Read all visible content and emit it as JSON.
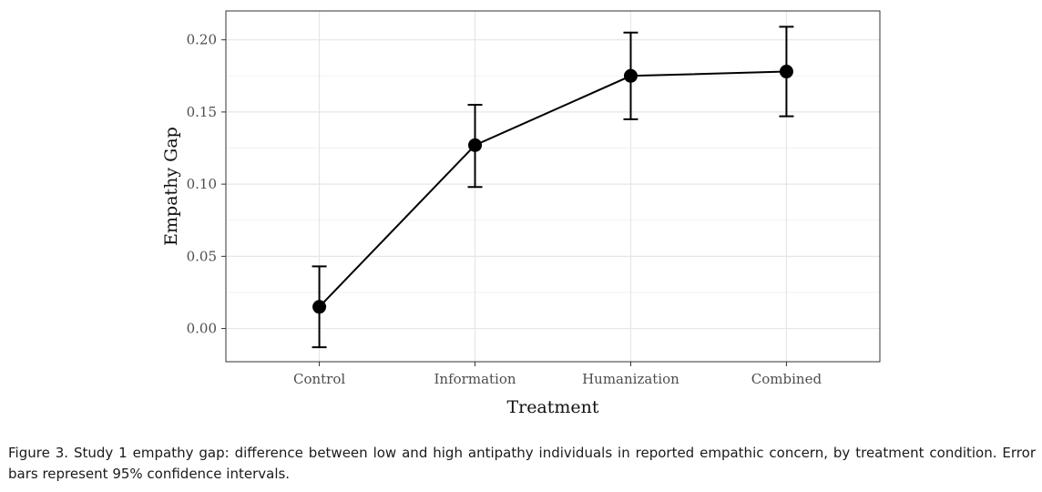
{
  "chart_data": {
    "type": "line",
    "categories": [
      "Control",
      "Information",
      "Humanization",
      "Combined"
    ],
    "series": [
      {
        "values": [
          0.015,
          0.127,
          0.175,
          0.178
        ],
        "ci_lower": [
          -0.013,
          0.098,
          0.145,
          0.147
        ],
        "ci_upper": [
          0.043,
          0.155,
          0.205,
          0.209
        ]
      }
    ],
    "xlabel": "Treatment",
    "ylabel": "Empathy Gap",
    "ylim": [
      -0.023,
      0.22
    ],
    "yticks": [
      0.0,
      0.05,
      0.1,
      0.15,
      0.2
    ],
    "ytick_labels": [
      "0.00",
      "0.05",
      "0.10",
      "0.15",
      "0.20"
    ],
    "grid": true,
    "error_bars": "95% confidence intervals",
    "colors": {
      "line": "#000000",
      "grid_major": "#e6e6e6",
      "grid_minor": "#f2f2f2",
      "frame": "#333333"
    }
  },
  "caption": "Figure 3. Study 1 empathy gap: difference between low and high antipathy individuals in reported empathic concern, by treatment condition. Error bars represent 95% confidence intervals."
}
